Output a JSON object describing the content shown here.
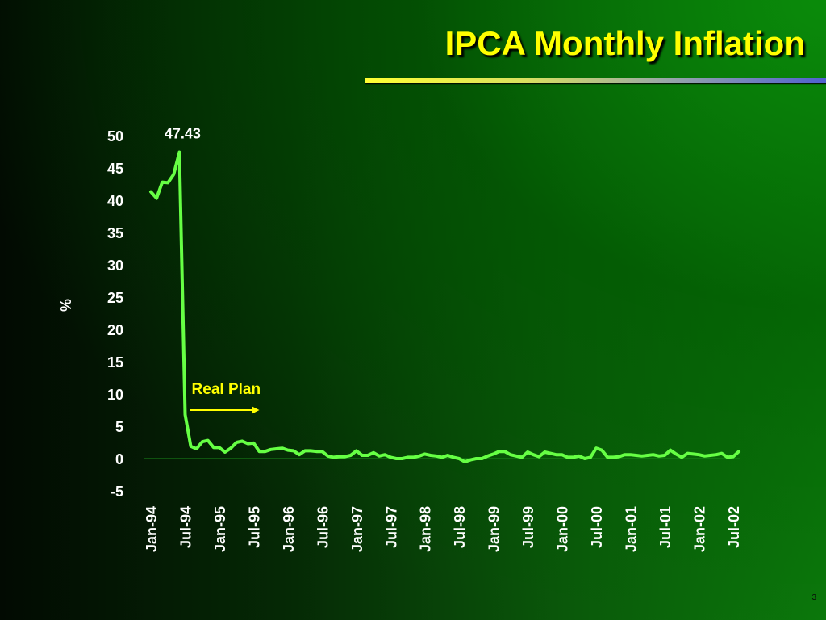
{
  "slide": {
    "title": "IPCA Monthly Inflation",
    "page_number": "3"
  },
  "colors": {
    "title": "#ffff00",
    "line": "#66ff44",
    "annotation": "#ffff00",
    "text": "#ffffff"
  },
  "chart_data": {
    "type": "line",
    "title": "IPCA Monthly Inflation",
    "ylabel": "%",
    "xlabel": "",
    "ylim": [
      -5,
      50
    ],
    "yticks": [
      50,
      45,
      40,
      35,
      30,
      25,
      20,
      15,
      10,
      5,
      0,
      -5
    ],
    "x_start": "Jan-94",
    "x_tick_labels": [
      "Jan-94",
      "Jul-94",
      "Jan-95",
      "Jul-95",
      "Jan-96",
      "Jul-96",
      "Jan-97",
      "Jul-97",
      "Jan-98",
      "Jul-98",
      "Jan-99",
      "Jul-99",
      "Jan-00",
      "Jul-00",
      "Jan-01",
      "Jul-01",
      "Jan-02",
      "Jul-02"
    ],
    "grid": false,
    "legend": "none",
    "series": [
      {
        "values": [
          41.3,
          40.3,
          42.8,
          42.7,
          44.0,
          47.43,
          6.8,
          1.9,
          1.5,
          2.6,
          2.8,
          1.7,
          1.7,
          1.0,
          1.6,
          2.5,
          2.7,
          2.3,
          2.4,
          1.1,
          1.1,
          1.4,
          1.5,
          1.6,
          1.3,
          1.2,
          0.6,
          1.2,
          1.2,
          1.1,
          1.1,
          0.4,
          0.2,
          0.3,
          0.3,
          0.5,
          1.2,
          0.5,
          0.5,
          0.9,
          0.4,
          0.6,
          0.2,
          0.0,
          0.0,
          0.2,
          0.2,
          0.4,
          0.7,
          0.5,
          0.4,
          0.2,
          0.5,
          0.2,
          0.0,
          -0.5,
          -0.2,
          0.0,
          0.0,
          0.4,
          0.7,
          1.1,
          1.1,
          0.6,
          0.4,
          0.2,
          1.0,
          0.6,
          0.3,
          1.0,
          0.8,
          0.6,
          0.6,
          0.2,
          0.2,
          0.4,
          0.0,
          0.2,
          1.6,
          1.3,
          0.2,
          0.2,
          0.3,
          0.6,
          0.6,
          0.5,
          0.4,
          0.5,
          0.6,
          0.4,
          0.5,
          1.3,
          0.7,
          0.2,
          0.8,
          0.7,
          0.6,
          0.4,
          0.5,
          0.6,
          0.8,
          0.2,
          0.3,
          1.1
        ]
      }
    ],
    "annotations": [
      {
        "text": "47.43",
        "x_index": 5,
        "y": 47.43
      },
      {
        "text": "Real Plan",
        "x_index": 7,
        "arrow": "right"
      }
    ]
  }
}
